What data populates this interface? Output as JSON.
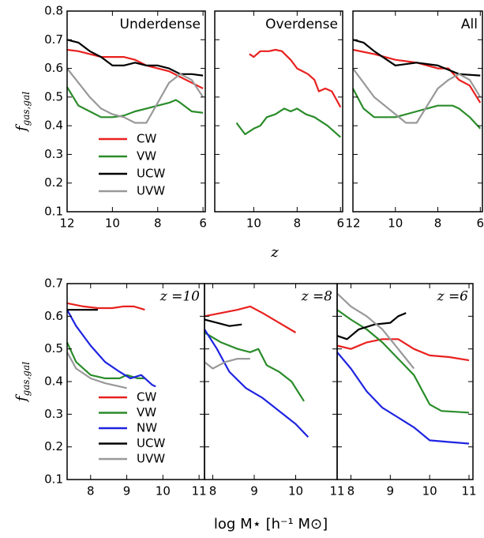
{
  "chart_data": [
    {
      "type": "line",
      "annotation": "Underdense",
      "ylabel": "f",
      "ylabel_sub": "gas,gal",
      "legend": "lower left",
      "show_ytick_labels": true,
      "xlim": [
        12,
        5.9
      ],
      "xticks": [
        12,
        10,
        8,
        6
      ],
      "ylim": [
        0.1,
        0.8
      ],
      "yticks": [
        0.1,
        0.2,
        0.3,
        0.4,
        0.5,
        0.6,
        0.7,
        0.8
      ],
      "series": [
        {
          "name": "CW",
          "color": "#e8211f",
          "x": [
            12,
            11.5,
            11,
            10.5,
            10,
            9.5,
            9,
            8.5,
            8,
            7.5,
            7,
            6.5,
            6
          ],
          "values": [
            0.665,
            0.66,
            0.65,
            0.64,
            0.64,
            0.64,
            0.63,
            0.61,
            0.6,
            0.59,
            0.57,
            0.55,
            0.53
          ]
        },
        {
          "name": "VW",
          "color": "#2a8c2a",
          "x": [
            12,
            11.5,
            11,
            10.5,
            10,
            9.5,
            9,
            8.5,
            8,
            7.5,
            7.2,
            7,
            6.5,
            6
          ],
          "values": [
            0.535,
            0.47,
            0.45,
            0.43,
            0.43,
            0.435,
            0.45,
            0.46,
            0.47,
            0.48,
            0.49,
            0.48,
            0.45,
            0.445
          ]
        },
        {
          "name": "UCW",
          "color": "#000000",
          "x": [
            12,
            11.5,
            11,
            10.5,
            10,
            9.5,
            9,
            8.5,
            8,
            7.5,
            7,
            6.5,
            6
          ],
          "values": [
            0.7,
            0.69,
            0.66,
            0.64,
            0.61,
            0.61,
            0.62,
            0.61,
            0.61,
            0.6,
            0.58,
            0.58,
            0.575
          ]
        },
        {
          "name": "UVW",
          "color": "#999999",
          "x": [
            12,
            11.5,
            11,
            10.5,
            10,
            9.5,
            9,
            8.5,
            8,
            7.5,
            7,
            6.5,
            6
          ],
          "values": [
            0.6,
            0.55,
            0.5,
            0.46,
            0.44,
            0.43,
            0.41,
            0.41,
            0.48,
            0.55,
            0.58,
            0.56,
            0.5
          ]
        }
      ]
    },
    {
      "type": "line",
      "annotation": "Overdense",
      "xlabel": "z",
      "xlim": [
        11.8,
        5.9
      ],
      "xticks": [
        10,
        8,
        6
      ],
      "ylim": [
        0.1,
        0.8
      ],
      "yticks": [
        0.1,
        0.2,
        0.3,
        0.4,
        0.5,
        0.6,
        0.7,
        0.8
      ],
      "series": [
        {
          "color": "#e8211f",
          "x": [
            10.2,
            10,
            9.7,
            9.3,
            9,
            8.7,
            8.3,
            8,
            7.5,
            7.2,
            7,
            6.7,
            6.4,
            6
          ],
          "values": [
            0.65,
            0.64,
            0.66,
            0.66,
            0.665,
            0.66,
            0.63,
            0.6,
            0.58,
            0.56,
            0.52,
            0.53,
            0.52,
            0.465
          ]
        },
        {
          "color": "#2a8c2a",
          "x": [
            10.8,
            10.4,
            10,
            9.7,
            9.4,
            9,
            8.6,
            8.3,
            8,
            7.6,
            7.2,
            7,
            6.6,
            6
          ],
          "values": [
            0.41,
            0.37,
            0.39,
            0.4,
            0.43,
            0.44,
            0.46,
            0.45,
            0.46,
            0.44,
            0.43,
            0.42,
            0.4,
            0.36
          ]
        }
      ]
    },
    {
      "type": "line",
      "annotation": "All",
      "xlim": [
        12,
        5.9
      ],
      "xticks": [
        12,
        10,
        8,
        6
      ],
      "ylim": [
        0.1,
        0.8
      ],
      "yticks": [
        0.1,
        0.2,
        0.3,
        0.4,
        0.5,
        0.6,
        0.7,
        0.8
      ],
      "series": [
        {
          "color": "#e8211f",
          "x": [
            12,
            11,
            10,
            9,
            8,
            7.5,
            7,
            6.5,
            6
          ],
          "values": [
            0.665,
            0.65,
            0.63,
            0.62,
            0.6,
            0.6,
            0.56,
            0.54,
            0.48
          ]
        },
        {
          "color": "#2a8c2a",
          "x": [
            12,
            11.5,
            11,
            10,
            9,
            8,
            7.3,
            7,
            6.5,
            6
          ],
          "values": [
            0.53,
            0.46,
            0.43,
            0.43,
            0.45,
            0.47,
            0.47,
            0.46,
            0.43,
            0.39
          ]
        },
        {
          "color": "#000000",
          "x": [
            12,
            11.5,
            11,
            10,
            9,
            8,
            7,
            6
          ],
          "values": [
            0.7,
            0.69,
            0.66,
            0.61,
            0.62,
            0.61,
            0.58,
            0.575
          ]
        },
        {
          "color": "#999999",
          "x": [
            12,
            11.5,
            11,
            10,
            9.5,
            9,
            8.5,
            8,
            7.5,
            7,
            6.5,
            6
          ],
          "values": [
            0.6,
            0.55,
            0.5,
            0.44,
            0.41,
            0.41,
            0.47,
            0.53,
            0.56,
            0.58,
            0.56,
            0.5
          ]
        }
      ]
    },
    {
      "type": "line",
      "annotation": "z =10",
      "ylabel": "f",
      "ylabel_sub": "gas,gal",
      "legend": "lower left",
      "show_ytick_labels": true,
      "xlim": [
        7.35,
        11.15
      ],
      "xticks": [
        8,
        9,
        10,
        11
      ],
      "ylim": [
        0.1,
        0.7
      ],
      "yticks": [
        0.1,
        0.2,
        0.3,
        0.4,
        0.5,
        0.6,
        0.7
      ],
      "series": [
        {
          "name": "CW",
          "color": "#e8211f",
          "x": [
            7.35,
            7.8,
            8.2,
            8.6,
            8.9,
            9.2,
            9.5
          ],
          "values": [
            0.64,
            0.63,
            0.625,
            0.625,
            0.63,
            0.63,
            0.62
          ]
        },
        {
          "name": "VW",
          "color": "#2a8c2a",
          "x": [
            7.35,
            7.6,
            8,
            8.4,
            8.8,
            9,
            9.3,
            9.5
          ],
          "values": [
            0.52,
            0.46,
            0.42,
            0.41,
            0.41,
            0.42,
            0.41,
            0.41
          ]
        },
        {
          "name": "NW",
          "color": "#1f24e0",
          "x": [
            7.35,
            7.6,
            8,
            8.4,
            8.8,
            9.1,
            9.4,
            9.7,
            9.8
          ],
          "values": [
            0.62,
            0.57,
            0.51,
            0.46,
            0.43,
            0.41,
            0.42,
            0.39,
            0.385
          ]
        },
        {
          "name": "UCW",
          "color": "#000000",
          "x": [
            7.35,
            7.8,
            8.2
          ],
          "values": [
            0.62,
            0.62,
            0.62
          ]
        },
        {
          "name": "UVW",
          "color": "#999999",
          "x": [
            7.35,
            7.6,
            8,
            8.4,
            8.8,
            9
          ],
          "values": [
            0.49,
            0.44,
            0.41,
            0.395,
            0.385,
            0.38
          ]
        }
      ]
    },
    {
      "type": "line",
      "annotation": "z =8",
      "xlabel": "log M⋆ [h⁻¹ M⊙]",
      "xlim": [
        7.8,
        11
      ],
      "xticks": [
        8,
        9,
        10,
        11
      ],
      "ylim": [
        0.1,
        0.7
      ],
      "yticks": [
        0.1,
        0.2,
        0.3,
        0.4,
        0.5,
        0.6,
        0.7
      ],
      "series": [
        {
          "color": "#e8211f",
          "x": [
            7.8,
            8.2,
            8.6,
            8.9,
            9.2,
            9.6,
            10
          ],
          "values": [
            0.6,
            0.61,
            0.62,
            0.63,
            0.61,
            0.58,
            0.55
          ]
        },
        {
          "color": "#2a8c2a",
          "x": [
            7.8,
            8.2,
            8.6,
            8.9,
            9.1,
            9.3,
            9.6,
            9.9,
            10.2
          ],
          "values": [
            0.55,
            0.52,
            0.5,
            0.49,
            0.5,
            0.45,
            0.43,
            0.4,
            0.34
          ]
        },
        {
          "color": "#1f24e0",
          "x": [
            7.8,
            8.1,
            8.4,
            8.8,
            9.2,
            9.6,
            10,
            10.3
          ],
          "values": [
            0.56,
            0.5,
            0.43,
            0.38,
            0.35,
            0.31,
            0.27,
            0.23
          ]
        },
        {
          "color": "#000000",
          "x": [
            7.8,
            8.1,
            8.4,
            8.7
          ],
          "values": [
            0.59,
            0.58,
            0.57,
            0.575
          ]
        },
        {
          "color": "#999999",
          "x": [
            7.8,
            8,
            8.3,
            8.6,
            8.9
          ],
          "values": [
            0.46,
            0.44,
            0.46,
            0.47,
            0.47
          ]
        }
      ]
    },
    {
      "type": "line",
      "annotation": "z =6",
      "xlim": [
        7.65,
        11.1
      ],
      "xticks": [
        8,
        9,
        10,
        11
      ],
      "ylim": [
        0.1,
        0.7
      ],
      "yticks": [
        0.1,
        0.2,
        0.3,
        0.4,
        0.5,
        0.6,
        0.7
      ],
      "series": [
        {
          "color": "#e8211f",
          "x": [
            7.65,
            8,
            8.4,
            8.8,
            9.2,
            9.6,
            10,
            10.5,
            11
          ],
          "values": [
            0.51,
            0.5,
            0.52,
            0.53,
            0.53,
            0.5,
            0.48,
            0.475,
            0.465
          ]
        },
        {
          "color": "#2a8c2a",
          "x": [
            7.65,
            8,
            8.4,
            8.8,
            9.2,
            9.6,
            10,
            10.3,
            11
          ],
          "values": [
            0.62,
            0.59,
            0.56,
            0.52,
            0.47,
            0.42,
            0.33,
            0.31,
            0.305
          ]
        },
        {
          "color": "#1f24e0",
          "x": [
            7.65,
            8,
            8.4,
            8.8,
            9.2,
            9.6,
            10,
            10.5,
            11
          ],
          "values": [
            0.49,
            0.44,
            0.37,
            0.32,
            0.29,
            0.26,
            0.22,
            0.215,
            0.21
          ]
        },
        {
          "color": "#000000",
          "x": [
            7.65,
            7.9,
            8.2,
            8.6,
            9,
            9.2,
            9.4
          ],
          "values": [
            0.54,
            0.53,
            0.56,
            0.575,
            0.58,
            0.6,
            0.61
          ]
        },
        {
          "color": "#999999",
          "x": [
            7.65,
            8,
            8.4,
            8.8,
            9.2,
            9.6
          ],
          "values": [
            0.67,
            0.63,
            0.6,
            0.56,
            0.5,
            0.44
          ]
        }
      ]
    }
  ]
}
